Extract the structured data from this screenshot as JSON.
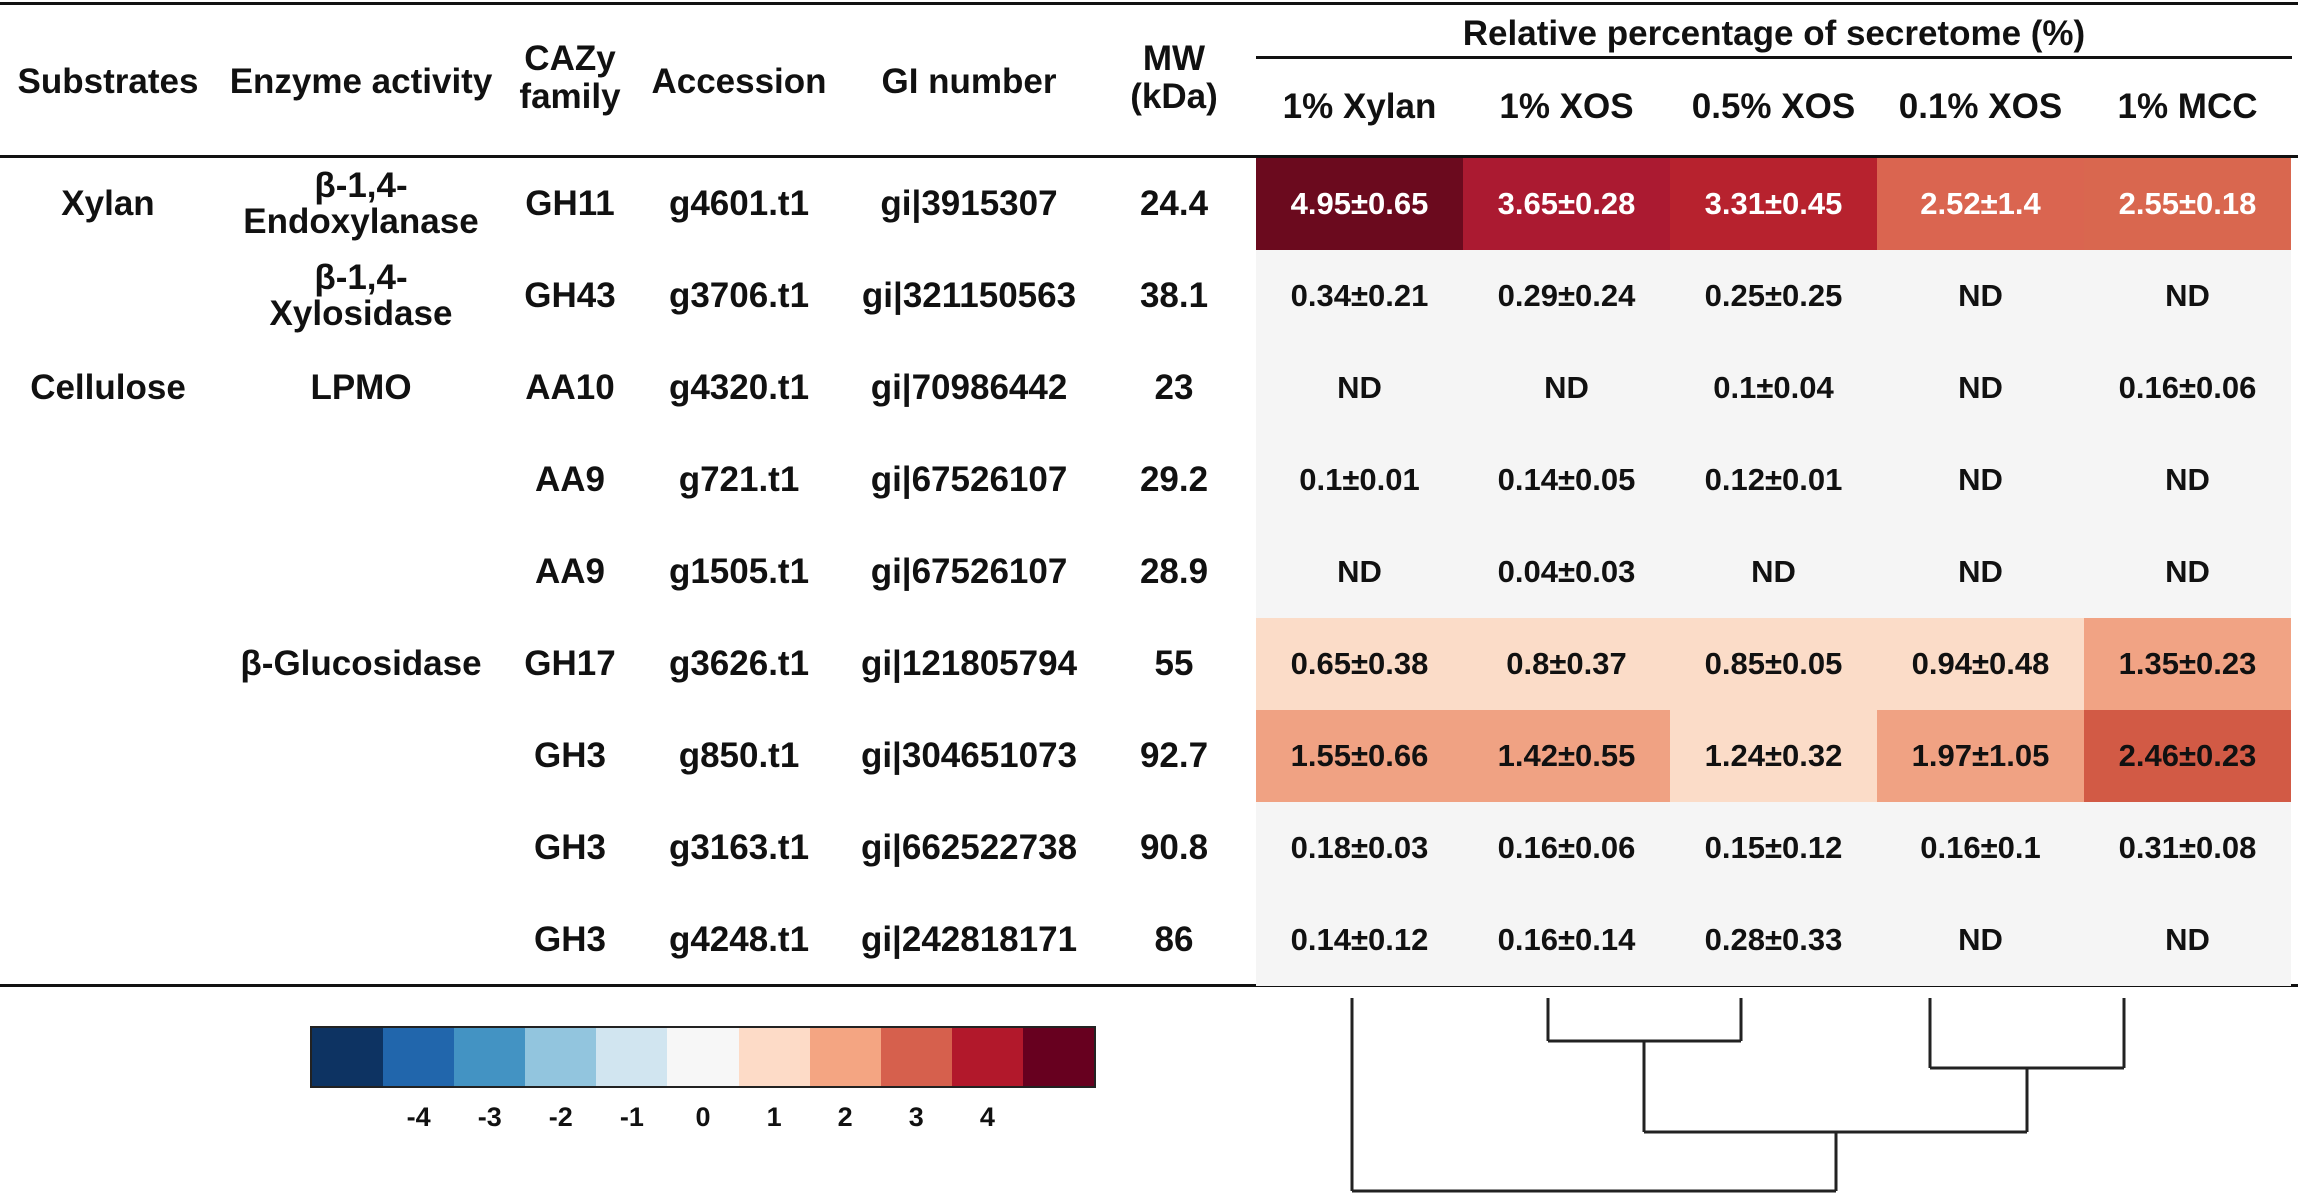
{
  "header": {
    "substrates": "Substrates",
    "enzyme_activity": "Enzyme activity",
    "cazy_line1": "CAZy",
    "cazy_line2": "family",
    "accession": "Accession",
    "gi_number": "GI number",
    "mw_line1": "MW",
    "mw_line2": "(kDa)",
    "group_title": "Relative percentage of secretome (%)",
    "conditions": [
      "1% Xylan",
      "1% XOS",
      "0.5% XOS",
      "0.1% XOS",
      "1% MCC"
    ]
  },
  "rows": [
    {
      "substrate": "Xylan",
      "enzyme": "β-1,4-\nEndoxylanase",
      "cazy": "GH11",
      "accession": "g4601.t1",
      "gi": "gi|3915307",
      "mw": "24.4",
      "values": [
        "4.95±0.65",
        "3.65±0.28",
        "3.31±0.45",
        "2.52±1.4",
        "2.55±0.18"
      ]
    },
    {
      "substrate": "",
      "enzyme": "β-1,4-\nXylosidase",
      "cazy": "GH43",
      "accession": "g3706.t1",
      "gi": "gi|321150563",
      "mw": "38.1",
      "values": [
        "0.34±0.21",
        "0.29±0.24",
        "0.25±0.25",
        "ND",
        "ND"
      ]
    },
    {
      "substrate": "Cellulose",
      "enzyme": "LPMO",
      "cazy": "AA10",
      "accession": "g4320.t1",
      "gi": "gi|70986442",
      "mw": "23",
      "values": [
        "ND",
        "ND",
        "0.1±0.04",
        "ND",
        "0.16±0.06"
      ]
    },
    {
      "substrate": "",
      "enzyme": "",
      "cazy": "AA9",
      "accession": "g721.t1",
      "gi": "gi|67526107",
      "mw": "29.2",
      "values": [
        "0.1±0.01",
        "0.14±0.05",
        "0.12±0.01",
        "ND",
        "ND"
      ]
    },
    {
      "substrate": "",
      "enzyme": "",
      "cazy": "AA9",
      "accession": "g1505.t1",
      "gi": "gi|67526107",
      "mw": "28.9",
      "values": [
        "ND",
        "0.04±0.03",
        "ND",
        "ND",
        "ND"
      ]
    },
    {
      "substrate": "",
      "enzyme": "β-Glucosidase",
      "cazy": "GH17",
      "accession": "g3626.t1",
      "gi": "gi|121805794",
      "mw": "55",
      "values": [
        "0.65±0.38",
        "0.8±0.37",
        "0.85±0.05",
        "0.94±0.48",
        "1.35±0.23"
      ]
    },
    {
      "substrate": "",
      "enzyme": "",
      "cazy": "GH3",
      "accession": "g850.t1",
      "gi": "gi|304651073",
      "mw": "92.7",
      "values": [
        "1.55±0.66",
        "1.42±0.55",
        "1.24±0.32",
        "1.97±1.05",
        "2.46±0.23"
      ]
    },
    {
      "substrate": "",
      "enzyme": "",
      "cazy": "GH3",
      "accession": "g3163.t1",
      "gi": "gi|662522738",
      "mw": "90.8",
      "values": [
        "0.18±0.03",
        "0.16±0.06",
        "0.15±0.12",
        "0.16±0.1",
        "0.31±0.08"
      ]
    },
    {
      "substrate": "",
      "enzyme": "",
      "cazy": "GH3",
      "accession": "g4248.t1",
      "gi": "gi|242818171",
      "mw": "86",
      "values": [
        "0.14±0.12",
        "0.16±0.14",
        "0.28±0.33",
        "ND",
        "ND"
      ]
    }
  ],
  "heat_colors": [
    [
      "#6b0a1e",
      "#ab1a31",
      "#b7222e",
      "#da6550",
      "#d9674f"
    ],
    [
      "#f5f5f5",
      "#f5f5f5",
      "#f5f5f5",
      "#f5f5f5",
      "#f5f5f5"
    ],
    [
      "#f5f5f5",
      "#f5f5f5",
      "#f5f5f5",
      "#f5f5f5",
      "#f5f5f5"
    ],
    [
      "#f5f5f5",
      "#f5f5f5",
      "#f5f5f5",
      "#f5f5f5",
      "#f5f5f5"
    ],
    [
      "#f5f5f5",
      "#f5f5f5",
      "#f5f5f5",
      "#f5f5f5",
      "#f5f5f5"
    ],
    [
      "#fbdcc8",
      "#fbdcc8",
      "#fbdcc8",
      "#fbdcc8",
      "#f1a384"
    ],
    [
      "#f0a283",
      "#f0a283",
      "#fbdcc8",
      "#f0a283",
      "#d25a45"
    ],
    [
      "#f5f5f5",
      "#f5f5f5",
      "#f5f5f5",
      "#f5f5f5",
      "#f5f5f5"
    ],
    [
      "#f5f5f5",
      "#f5f5f5",
      "#f5f5f5",
      "#f5f5f5",
      "#f5f5f5"
    ]
  ],
  "heat_text_light": [
    [
      true,
      true,
      true,
      true,
      true
    ],
    [
      false,
      false,
      false,
      false,
      false
    ],
    [
      false,
      false,
      false,
      false,
      false
    ],
    [
      false,
      false,
      false,
      false,
      false
    ],
    [
      false,
      false,
      false,
      false,
      false
    ],
    [
      false,
      false,
      false,
      false,
      false
    ],
    [
      false,
      false,
      false,
      false,
      false
    ],
    [
      false,
      false,
      false,
      false,
      false
    ],
    [
      false,
      false,
      false,
      false,
      false
    ]
  ],
  "colorbar": {
    "ticks": [
      "-4",
      "-3",
      "-2",
      "-1",
      "0",
      "1",
      "2",
      "3",
      "4"
    ],
    "colors": [
      "#0d3362",
      "#2166ac",
      "#4393c3",
      "#92c5de",
      "#d1e5f0",
      "#f7f7f7",
      "#fddbc7",
      "#f4a582",
      "#d6604d",
      "#b2182b",
      "#67001f"
    ]
  }
}
